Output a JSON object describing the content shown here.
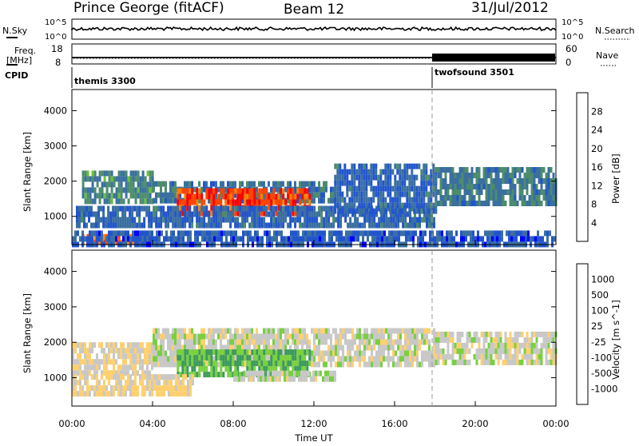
{
  "header": {
    "station": "Prince George (fitACF)",
    "beam": "Beam 12",
    "date": "31/Jul/2012"
  },
  "top_panels": {
    "nsky_label": "N.Sky",
    "nsky_ticks": [
      "10^5",
      "10^0"
    ],
    "nsearch_label": "N.Search",
    "nsearch_ticks": [
      "10^5",
      "10^0"
    ],
    "freq_label_1": "Freq.",
    "freq_label_2": "[MHz]",
    "freq_ticks": [
      "18",
      "8"
    ],
    "nave_label": "Nave",
    "nave_ticks": [
      "60",
      "0"
    ],
    "cpid_label": "CPID",
    "cpid_segments": [
      {
        "name": "themis 3300",
        "start_hour": 0,
        "end_hour": 18
      },
      {
        "name": "twofsound 3501",
        "start_hour": 18,
        "end_hour": 24
      }
    ]
  },
  "colors": {
    "power": [
      "#0000ff",
      "#2255cc",
      "#3a6fa0",
      "#4c8c6c",
      "#6cc23a",
      "#e8b800",
      "#ff8000",
      "#ff4400",
      "#ff0000"
    ],
    "velocity": [
      "#ff0000",
      "#ff6a00",
      "#ffa040",
      "#ffd070",
      "#c8c8c8",
      "#78d040",
      "#3c9a5c",
      "#2f6f96",
      "#1f3fc0"
    ]
  },
  "chart_data": [
    {
      "type": "heatmap",
      "ylabel": "Slant Range [km]",
      "xlabel": "",
      "xlim": [
        0,
        24
      ],
      "ylim": [
        200,
        4600
      ],
      "y_ticks": [
        "1000",
        "2000",
        "3000",
        "4000"
      ],
      "x_ticks": [
        "00:00",
        "04:00",
        "08:00",
        "12:00",
        "16:00",
        "20:00",
        "00:00"
      ],
      "colorbar_label": "Power [dB]",
      "colorbar_ticks": [
        "4",
        "8",
        "12",
        "16",
        "20",
        "24",
        "28"
      ],
      "colorbar_range": [
        0,
        30
      ],
      "regions": [
        {
          "hours": [
            0.5,
            4.0
          ],
          "range": [
            1400,
            2300
          ],
          "level": 10
        },
        {
          "hours": [
            4.0,
            13.0
          ],
          "range": [
            1500,
            2000
          ],
          "level": 8
        },
        {
          "hours": [
            5.2,
            11.8
          ],
          "range": [
            1100,
            1800
          ],
          "level": 27
        },
        {
          "hours": [
            0.2,
            18.0
          ],
          "range": [
            700,
            1300
          ],
          "level": 6
        },
        {
          "hours": [
            13.0,
            18.0
          ],
          "range": [
            1200,
            2500
          ],
          "level": 6
        },
        {
          "hours": [
            18.0,
            24.0
          ],
          "range": [
            1400,
            2400
          ],
          "level": 9
        },
        {
          "hours": [
            0.5,
            4.0
          ],
          "range": [
            300,
            500
          ],
          "level": 24
        },
        {
          "hours": [
            0.0,
            24.0
          ],
          "range": [
            200,
            600
          ],
          "level": 5
        }
      ]
    },
    {
      "type": "heatmap",
      "ylabel": "Slant Range [km]",
      "xlabel": "Time UT",
      "xlim": [
        0,
        24
      ],
      "ylim": [
        200,
        4600
      ],
      "y_ticks": [
        "1000",
        "2000",
        "3000",
        "4000"
      ],
      "x_ticks": [
        "00:00",
        "04:00",
        "08:00",
        "12:00",
        "16:00",
        "20:00",
        "00:00"
      ],
      "colorbar_label": "Velocity [m s^-1]",
      "colorbar_ticks": [
        "1000",
        "500",
        "100",
        "25",
        "-25",
        "-100",
        "-500",
        "-1000"
      ],
      "colorbar_range": [
        -1000,
        1000
      ],
      "regions": [
        {
          "hours": [
            0.0,
            4.0
          ],
          "range": [
            1200,
            2000
          ],
          "value": -80
        },
        {
          "hours": [
            4.0,
            18.0
          ],
          "range": [
            1300,
            2400
          ],
          "value": 0
        },
        {
          "hours": [
            5.2,
            11.8
          ],
          "range": [
            1100,
            1800
          ],
          "value": 350
        },
        {
          "hours": [
            0.0,
            6.0
          ],
          "range": [
            500,
            1100
          ],
          "value": -150
        },
        {
          "hours": [
            18.0,
            24.0
          ],
          "range": [
            1500,
            2300
          ],
          "value": 0
        },
        {
          "hours": [
            8.0,
            13.0
          ],
          "range": [
            900,
            1200
          ],
          "value": 60
        }
      ]
    }
  ]
}
